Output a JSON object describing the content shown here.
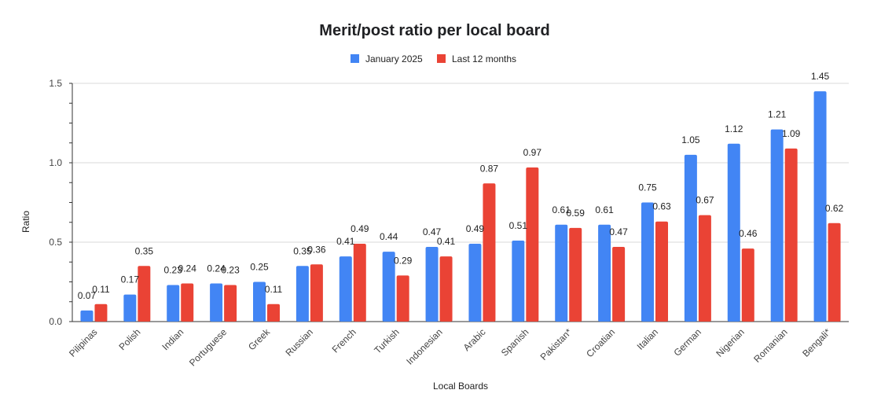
{
  "chart_data": {
    "type": "bar",
    "title": "Merit/post ratio per local board",
    "xlabel": "Local Boards",
    "ylabel": "Ratio",
    "ylim": [
      0,
      1.5
    ],
    "yticks": [
      "0.0",
      "0.5",
      "1.0",
      "1.5"
    ],
    "grid": true,
    "legend_position": "top",
    "categories": [
      "Pilipinas",
      "Polish",
      "Indian",
      "Portuguese",
      "Greek",
      "Russian",
      "French",
      "Turkish",
      "Indonesian",
      "Arabic",
      "Spanish",
      "Pakistan*",
      "Croatian",
      "Italian",
      "German",
      "Nigerian",
      "Romanian",
      "Bengali*"
    ],
    "series": [
      {
        "name": "January 2025",
        "color": "#4285f4",
        "values": [
          0.07,
          0.17,
          0.23,
          0.24,
          0.25,
          0.35,
          0.41,
          0.44,
          0.47,
          0.49,
          0.51,
          0.61,
          0.61,
          0.75,
          1.05,
          1.12,
          1.21,
          1.45
        ],
        "labels": [
          "0.07",
          "0.17",
          "0.23",
          "0.24",
          "0.25",
          "0.35",
          "0.41",
          "0.44",
          "0.47",
          "0.49",
          "0.51",
          "0.61",
          "0.61",
          "0.75",
          "1.05",
          "1.12",
          "1.21",
          "1.45"
        ]
      },
      {
        "name": "Last 12 months",
        "color": "#ea4335",
        "values": [
          0.11,
          0.35,
          0.24,
          0.23,
          0.11,
          0.36,
          0.49,
          0.29,
          0.41,
          0.87,
          0.97,
          0.59,
          0.47,
          0.63,
          0.67,
          0.46,
          1.09,
          0.62
        ],
        "labels": [
          "0.11",
          "0.35",
          "0.24",
          "0.23",
          "0.11",
          "0.36",
          "0.49",
          "0.29",
          "0.41",
          "0.87",
          "0.97",
          "0.59",
          "0.47",
          "0.63",
          "0.67",
          "0.46",
          "1.09",
          "0.62"
        ]
      }
    ]
  }
}
